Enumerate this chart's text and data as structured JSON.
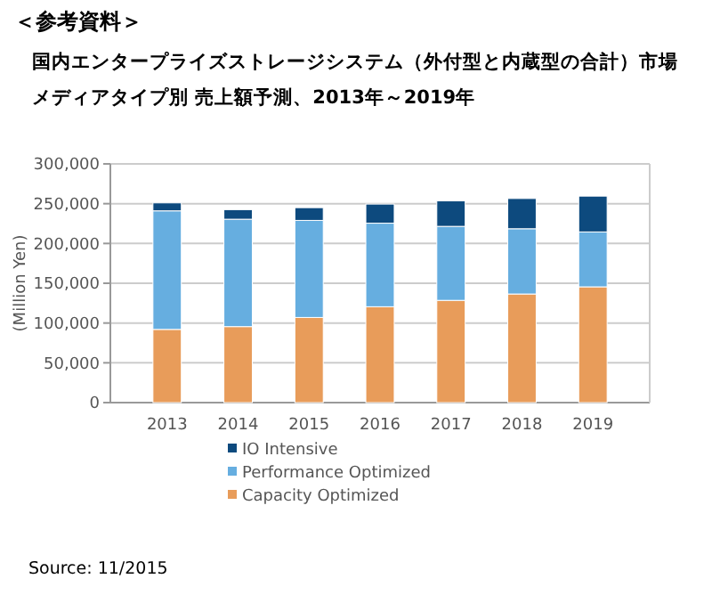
{
  "chart_data": {
    "type": "bar",
    "stacked": true,
    "title": "国内エンタープライズストレージシステム（外付型と内蔵型の合計）市場",
    "subtitle": "メディアタイプ別 売上額予測、2013年～2019年",
    "ylabel": "(Million Yen)",
    "annotations": [
      "＜参考資料＞",
      "Source: 11/2015"
    ],
    "categories": [
      "2013",
      "2014",
      "2015",
      "2016",
      "2017",
      "2018",
      "2019"
    ],
    "series": [
      {
        "name": "Capacity Optimized",
        "color": "#e89c5a",
        "values": [
          92000,
          95500,
          107000,
          120500,
          128500,
          136500,
          145500
        ]
      },
      {
        "name": "Performance Optimized",
        "color": "#66aee0",
        "values": [
          149000,
          135000,
          122000,
          105000,
          93000,
          82000,
          69000
        ]
      },
      {
        "name": "IO Intensive",
        "color": "#0d4a7e",
        "values": [
          10000,
          12000,
          16000,
          24000,
          32000,
          38000,
          45000
        ]
      }
    ],
    "ylim": [
      0,
      300000
    ],
    "yticks": [
      {
        "value": 0,
        "label": "0"
      },
      {
        "value": 50000,
        "label": "50,000"
      },
      {
        "value": 100000,
        "label": "100,000"
      },
      {
        "value": 150000,
        "label": "150,000"
      },
      {
        "value": 200000,
        "label": "200,000"
      },
      {
        "value": 250000,
        "label": "250,000"
      },
      {
        "value": 300000,
        "label": "300,000"
      }
    ],
    "grid": "y",
    "legend": "bottom"
  }
}
